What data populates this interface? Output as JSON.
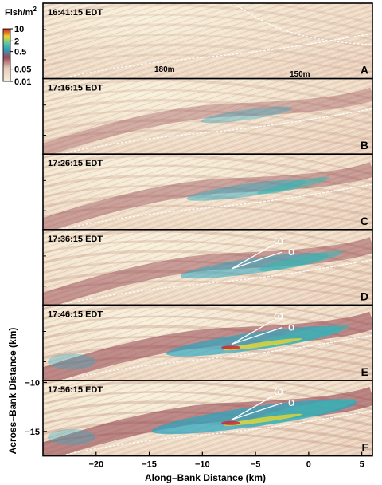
{
  "figure": {
    "colorbar": {
      "title": "Fish/m",
      "title_exponent": "2",
      "tick_labels": [
        "10",
        "2",
        "0.5",
        "0.05",
        "0.01"
      ],
      "tick_values": [
        10,
        2,
        0.5,
        0.05,
        0.01
      ],
      "colors": [
        "#f4ecd6",
        "#d8b4a4",
        "#8a3a4a",
        "#2aa0b8",
        "#e8d830",
        "#d0202a"
      ]
    },
    "xlabel": "Along–Bank Distance (km)",
    "ylabel": "Across–Bank Distance (km)",
    "x_ticks": [
      "−20",
      "−15",
      "−10",
      "−5",
      "0",
      "5"
    ],
    "y_ticks": [
      "−10",
      "−15"
    ],
    "contour_labels": [
      "180m",
      "150m"
    ],
    "greek_labels": [
      "ω",
      "α"
    ]
  },
  "chart_data": {
    "type": "heatmap",
    "xlabel": "Along–Bank Distance (km)",
    "ylabel": "Across–Bank Distance (km)",
    "xlim": [
      -25,
      6
    ],
    "ylim_bottom_panel": [
      -17.5,
      -9.8
    ],
    "x_ticks": [
      -20,
      -15,
      -10,
      -5,
      0,
      5
    ],
    "y_ticks": [
      -10,
      -15
    ],
    "colorbar_scale": "log",
    "colorbar_range": [
      0.01,
      10
    ],
    "panels": [
      {
        "letter": "A",
        "time": "16:41:15 EDT",
        "max_density": 0.05,
        "labels": [
          "180m",
          "150m"
        ]
      },
      {
        "letter": "B",
        "time": "17:16:15 EDT",
        "max_density": 0.5
      },
      {
        "letter": "C",
        "time": "17:26:15 EDT",
        "max_density": 2
      },
      {
        "letter": "D",
        "time": "17:36:15 EDT",
        "max_density": 2,
        "labels": [
          "ω",
          "α"
        ]
      },
      {
        "letter": "E",
        "time": "17:46:15 EDT",
        "max_density": 10,
        "labels": [
          "ω",
          "α"
        ]
      },
      {
        "letter": "F",
        "time": "17:56:15 EDT",
        "max_density": 10,
        "labels": [
          "ω",
          "α"
        ]
      }
    ]
  }
}
